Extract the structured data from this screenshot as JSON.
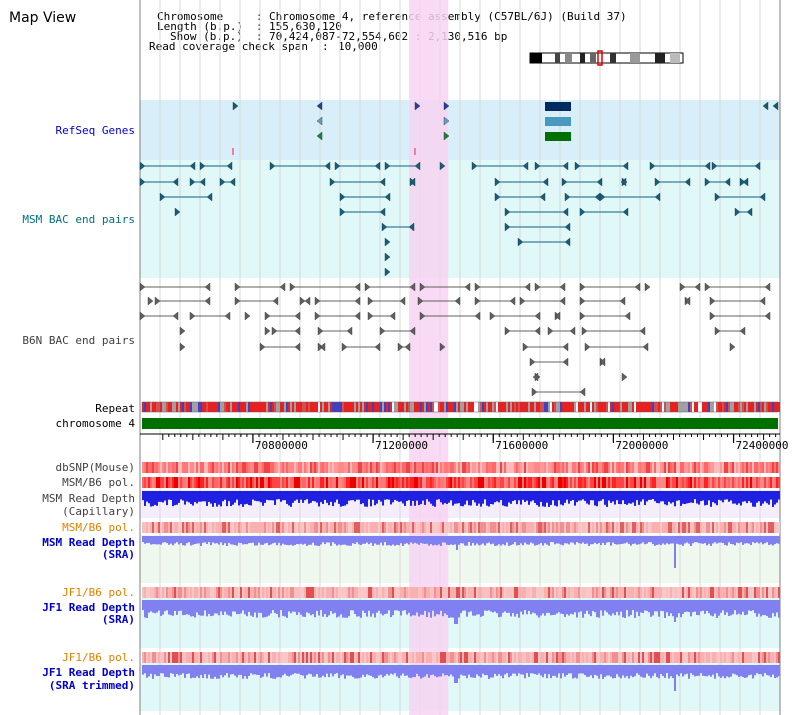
{
  "page": {
    "title": "Map View"
  },
  "header": {
    "chromosome_key": "Chromosome",
    "chromosome_val": "Chromosome 4, reference assembly (C57BL/6J) (Build 37)",
    "length_key": "Length (b.p.)",
    "length_val": "155,630,120",
    "show_key": "Show (b.p.)",
    "show_val": "70,424,087-72,554,602 : 2,130,516 bp",
    "read_key": "Read coverage check span",
    "read_val": "10,000"
  },
  "tracks": {
    "refseq": "RefSeq Genes",
    "msm_bac": "MSM BAC end pairs",
    "b6n_bac": "B6N BAC end pairs",
    "repeat": "Repeat",
    "chromosome": "chromosome 4",
    "dbsnp": "dbSNP(Mouse)",
    "msm_b6_pol_1": "MSM/B6 pol.",
    "msm_depth_cap_1": "MSM Read Depth",
    "msm_depth_cap_2": "(Capillary)",
    "msm_b6_pol_2": "MSM/B6 pol.",
    "msm_depth_sra_1": "MSM Read Depth",
    "msm_depth_sra_2": "(SRA)",
    "jf1_b6_pol_1": "JF1/B6 pol.",
    "jf1_depth_sra_1": "JF1 Read Depth",
    "jf1_depth_sra_2": "(SRA)",
    "jf1_b6_pol_2": "JF1/B6 pol.",
    "jf1_depth_trim_1": "JF1 Read Depth",
    "jf1_depth_trim_2": "(SRA trimmed)"
  },
  "axis": {
    "ticks": [
      "70800000",
      "71200000",
      "71600000",
      "72000000",
      "72400000"
    ],
    "tick_values": [
      70800000,
      71200000,
      71600000,
      72000000,
      72400000
    ],
    "range_start": 70424087,
    "range_end": 72554602
  },
  "highlight": {
    "start": 71320000,
    "end": 71450000
  },
  "colors": {
    "label_dark": "#000000",
    "label_blue": "#0000cc",
    "label_teal": "#007080",
    "label_gray": "#404040",
    "label_orange": "#e08000",
    "highlight": "#f7d4f2",
    "refseq_bg": "#d8eef8",
    "msm_bac_bg": "#e0f8f8",
    "chromosome_bar": "#007000",
    "repeat_red": "#e82020",
    "depth_blue": "#2020e0",
    "depth_light": "#8080f0"
  }
}
